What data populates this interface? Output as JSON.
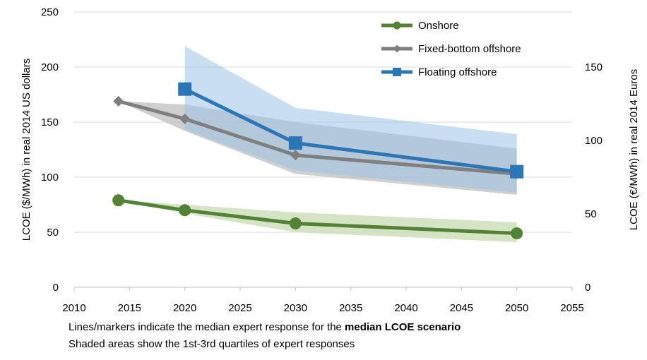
{
  "chart_data": {
    "type": "line",
    "x_ticks": [
      "2010",
      "2015",
      "2020",
      "2025",
      "2030",
      "2035",
      "2040",
      "2045",
      "2050",
      "2055"
    ],
    "xlim": [
      2010,
      2055
    ],
    "y_left_ticks": [
      "0",
      "50",
      "100",
      "150",
      "200",
      "250"
    ],
    "ylim_left": [
      0,
      250
    ],
    "y_right_ticks": [
      "0",
      "50",
      "100",
      "150"
    ],
    "ylim_right": [
      0,
      187.5
    ],
    "ylabel_left": "LCOE ($/MWh) in real 2014 US dollars",
    "ylabel_right": "LCOE (€/MWh) in real 2014 Euros",
    "series": [
      {
        "name": "Onshore",
        "color": "#538135",
        "band_color": "#c5dbb1",
        "marker": "circle",
        "x": [
          2014,
          2020,
          2030,
          2050
        ],
        "values": [
          79,
          70,
          58,
          49
        ],
        "band_x": [
          2014,
          2020,
          2030,
          2050
        ],
        "band_low": [
          79,
          67,
          50,
          41
        ],
        "band_high": [
          79,
          75,
          68,
          59
        ]
      },
      {
        "name": "Fixed-bottom offshore",
        "color": "#7f7f7f",
        "band_color": "#bfbfbf",
        "marker": "diamond",
        "x": [
          2014,
          2020,
          2030,
          2050
        ],
        "values": [
          169,
          153,
          120,
          103
        ],
        "band_x": [
          2014,
          2020,
          2030,
          2050
        ],
        "band_low": [
          169,
          142,
          103,
          84
        ],
        "band_high": [
          169,
          166,
          150,
          126
        ]
      },
      {
        "name": "Floating offshore",
        "color": "#2e75b6",
        "band_color": "#9dc3e6",
        "marker": "square",
        "x": [
          2020,
          2030,
          2050
        ],
        "values": [
          180,
          131,
          105
        ],
        "band_x": [
          2020,
          2030,
          2050
        ],
        "band_low": [
          143,
          106,
          86
        ],
        "band_high": [
          219,
          163,
          139
        ]
      }
    ]
  },
  "notes": {
    "line1_prefix": "Lines/markers indicate the median expert response for the ",
    "line1_bold": "median LCOE scenario",
    "line2": "Shaded areas show the 1st-3rd quartiles of expert responses"
  }
}
